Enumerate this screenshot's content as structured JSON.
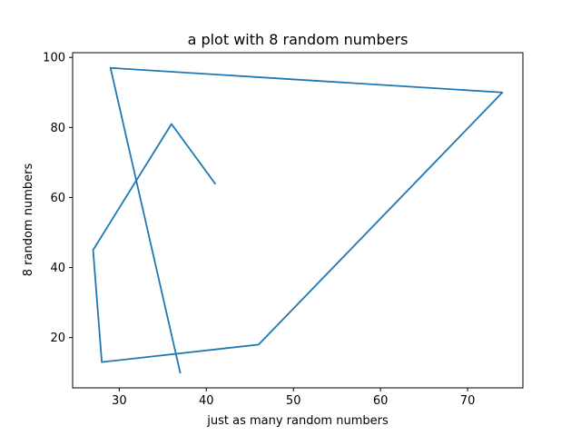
{
  "chart_data": {
    "type": "line",
    "title": "a plot with 8 random numbers",
    "xlabel": "just as many random numbers",
    "ylabel": "8 random numbers",
    "series": [
      {
        "x": [
          37,
          29,
          74,
          46,
          28,
          27,
          36,
          41
        ],
        "y": [
          10,
          97,
          90,
          18,
          13,
          45,
          81,
          64
        ],
        "color": "#1f77b4"
      }
    ],
    "xlim": [
      24.65,
      76.35
    ],
    "ylim": [
      5.65,
      101.35
    ],
    "xticks": [
      30,
      40,
      50,
      60,
      70
    ],
    "yticks": [
      20,
      40,
      60,
      80,
      100
    ],
    "grid": false
  }
}
